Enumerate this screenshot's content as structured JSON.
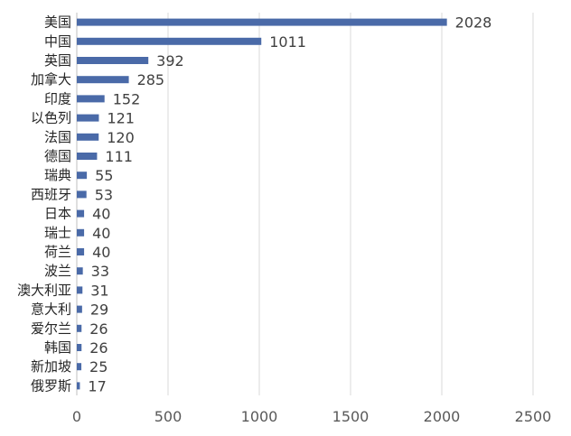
{
  "chart_data": {
    "type": "bar",
    "orientation": "horizontal",
    "title": "",
    "xlabel": "",
    "ylabel": "",
    "categories": [
      "美国",
      "中国",
      "英国",
      "加拿大",
      "印度",
      "以色列",
      "法国",
      "德国",
      "瑞典",
      "西班牙",
      "日本",
      "瑞士",
      "荷兰",
      "波兰",
      "澳大利亚",
      "意大利",
      "爱尔兰",
      "韩国",
      "新加坡",
      "俄罗斯"
    ],
    "values": [
      2028,
      1011,
      392,
      285,
      152,
      121,
      120,
      111,
      55,
      53,
      40,
      40,
      40,
      33,
      31,
      29,
      26,
      26,
      25,
      17
    ],
    "xlim": [
      0,
      2500
    ],
    "x_ticks": [
      0,
      500,
      1000,
      1500,
      2000,
      2500
    ],
    "x_tick_labels": [
      "0",
      "500",
      "1000",
      "1500",
      "2000",
      "2500"
    ],
    "grid": "vertical",
    "bar_color": "#4a6aa8",
    "data_labels": true
  }
}
